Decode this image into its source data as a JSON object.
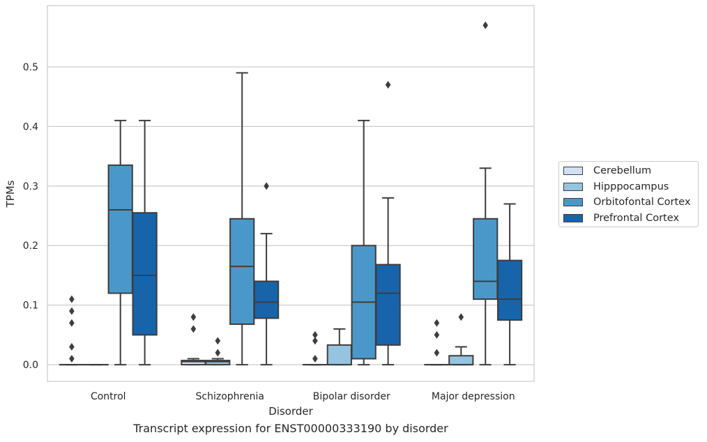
{
  "caption": "Transcript expression for ENST00000333190 by disorder",
  "chart_data": {
    "type": "box",
    "title": "",
    "xlabel": "Disorder",
    "ylabel": "TPMs",
    "ylim": [
      -0.028,
      0.603
    ],
    "yticks": [
      0.0,
      0.1,
      0.2,
      0.3,
      0.4,
      0.5
    ],
    "ytick_labels": [
      "0.0",
      "0.1",
      "0.2",
      "0.3",
      "0.4",
      "0.5"
    ],
    "grid": "horizontal",
    "legend_position": "right",
    "categories": [
      "Control",
      "Schizophrenia",
      "Bipolar disorder",
      "Major depression"
    ],
    "series": [
      {
        "name": "Cerebellum",
        "color": "#d0e1f2",
        "boxes": [
          {
            "q1": 0.0,
            "median": 0.0,
            "q3": 0.0,
            "whislo": 0.0,
            "whishi": 0.0,
            "fliers": [
              0.01,
              0.03,
              0.07,
              0.09,
              0.11
            ]
          },
          {
            "q1": 0.0,
            "median": 0.005,
            "q3": 0.007,
            "whislo": 0.0,
            "whishi": 0.01,
            "fliers": [
              0.06,
              0.08
            ]
          },
          {
            "q1": 0.0,
            "median": 0.0,
            "q3": 0.0,
            "whislo": 0.0,
            "whishi": 0.0,
            "fliers": [
              0.01,
              0.04,
              0.05
            ]
          },
          {
            "q1": 0.0,
            "median": 0.0,
            "q3": 0.0,
            "whislo": 0.0,
            "whishi": 0.0,
            "fliers": [
              0.02,
              0.05,
              0.07
            ]
          }
        ]
      },
      {
        "name": "Hipppocampus",
        "color": "#94c4df",
        "boxes": [
          {
            "q1": 0.0,
            "median": 0.0,
            "q3": 0.0,
            "whislo": 0.0,
            "whishi": 0.0,
            "fliers": []
          },
          {
            "q1": 0.0,
            "median": 0.005,
            "q3": 0.007,
            "whislo": 0.0,
            "whishi": 0.01,
            "fliers": [
              0.02,
              0.04
            ]
          },
          {
            "q1": 0.0,
            "median": 0.0,
            "q3": 0.033,
            "whislo": 0.0,
            "whishi": 0.06,
            "fliers": []
          },
          {
            "q1": 0.0,
            "median": 0.0,
            "q3": 0.015,
            "whislo": 0.0,
            "whishi": 0.03,
            "fliers": [
              0.08
            ]
          }
        ]
      },
      {
        "name": "Orbitofontal Cortex",
        "color": "#4a98c9",
        "boxes": [
          {
            "q1": 0.12,
            "median": 0.26,
            "q3": 0.335,
            "whislo": 0.0,
            "whishi": 0.41,
            "fliers": []
          },
          {
            "q1": 0.068,
            "median": 0.165,
            "q3": 0.245,
            "whislo": 0.0,
            "whishi": 0.49,
            "fliers": []
          },
          {
            "q1": 0.01,
            "median": 0.105,
            "q3": 0.2,
            "whislo": 0.0,
            "whishi": 0.41,
            "fliers": []
          },
          {
            "q1": 0.11,
            "median": 0.14,
            "q3": 0.245,
            "whislo": 0.0,
            "whishi": 0.33,
            "fliers": [
              0.57
            ]
          }
        ]
      },
      {
        "name": "Prefrontal Cortex",
        "color": "#1764ab",
        "boxes": [
          {
            "q1": 0.05,
            "median": 0.15,
            "q3": 0.255,
            "whislo": 0.0,
            "whishi": 0.41,
            "fliers": []
          },
          {
            "q1": 0.078,
            "median": 0.105,
            "q3": 0.14,
            "whislo": 0.0,
            "whishi": 0.22,
            "fliers": [
              0.3
            ]
          },
          {
            "q1": 0.033,
            "median": 0.12,
            "q3": 0.168,
            "whislo": 0.0,
            "whishi": 0.28,
            "fliers": [
              0.47
            ]
          },
          {
            "q1": 0.075,
            "median": 0.11,
            "q3": 0.175,
            "whislo": 0.0,
            "whishi": 0.27,
            "fliers": []
          }
        ]
      }
    ]
  }
}
